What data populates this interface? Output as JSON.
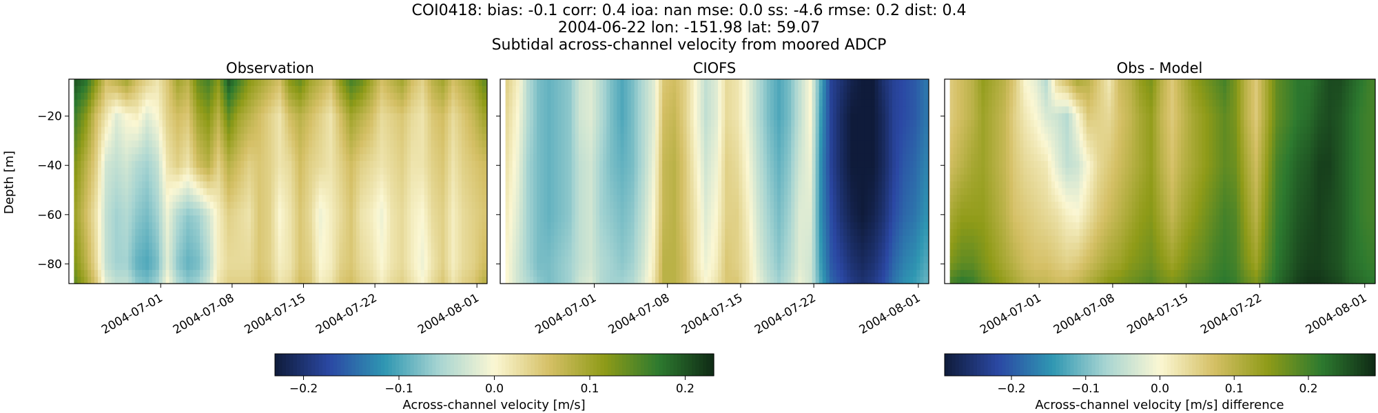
{
  "figure": {
    "title_lines": [
      "COI0418: bias: -0.1  corr: 0.4  ioa: nan  mse: 0.0  ss: -4.6  rmse: 0.2  dist: 0.4",
      "2004-06-22 lon: -151.98 lat: 59.07",
      "Subtidal across-channel velocity from moored ADCP"
    ]
  },
  "chart_data": [
    {
      "type": "heatmap",
      "title": "Observation",
      "ylabel": "Depth [m]",
      "xlabel": "",
      "x_range": [
        "2004-06-22",
        "2004-08-02"
      ],
      "ylim": [
        -88,
        -5
      ],
      "xticks": [
        "2004-07-01",
        "2004-07-08",
        "2004-07-15",
        "2004-07-22",
        "2004-08-01"
      ],
      "yticks": [
        -20,
        -40,
        -60,
        -80
      ],
      "colormap": "delta (blue-teal-cream-yellow-green)",
      "color_range": [
        -0.23,
        0.23
      ],
      "time_columns": [
        "2004-06-23",
        "2004-06-24",
        "2004-06-25",
        "2004-06-26",
        "2004-06-27",
        "2004-06-28",
        "2004-06-29",
        "2004-06-30",
        "2004-07-01",
        "2004-07-02",
        "2004-07-03",
        "2004-07-04",
        "2004-07-05",
        "2004-07-06",
        "2004-07-07",
        "2004-07-08",
        "2004-07-09",
        "2004-07-10",
        "2004-07-11",
        "2004-07-12",
        "2004-07-13",
        "2004-07-14",
        "2004-07-15",
        "2004-07-16",
        "2004-07-17",
        "2004-07-18",
        "2004-07-19",
        "2004-07-20",
        "2004-07-21",
        "2004-07-22",
        "2004-07-23",
        "2004-07-24",
        "2004-07-25",
        "2004-07-26",
        "2004-07-27",
        "2004-07-28",
        "2004-07-29",
        "2004-07-30",
        "2004-07-31",
        "2004-08-01",
        "2004-08-02"
      ],
      "depth_levels": [
        -5,
        -20,
        -40,
        -60,
        -80,
        -88
      ],
      "values": [
        [
          0.2,
          0.18,
          0.12,
          0.06,
          0.08,
          0.1,
          0.06,
          0.04,
          0.02,
          0.05,
          0.1,
          0.08,
          0.14,
          0.16,
          0.12,
          0.2,
          0.16,
          0.12,
          0.1,
          0.08,
          0.06,
          0.12,
          0.14,
          0.1,
          0.08,
          0.06,
          0.12,
          0.16,
          0.14,
          0.1,
          0.06,
          0.08,
          0.1,
          0.06,
          0.04,
          0.08,
          0.1,
          0.06,
          0.08,
          0.1,
          0.14
        ],
        [
          0.16,
          0.12,
          0.06,
          0.02,
          -0.02,
          0.0,
          0.01,
          -0.02,
          0.0,
          0.04,
          0.06,
          0.05,
          0.1,
          0.12,
          0.08,
          0.14,
          0.1,
          0.08,
          0.06,
          0.04,
          0.02,
          0.06,
          0.08,
          0.06,
          0.04,
          0.02,
          0.06,
          0.1,
          0.08,
          0.06,
          0.03,
          0.04,
          0.05,
          0.03,
          0.02,
          0.05,
          0.06,
          0.03,
          0.05,
          0.07,
          0.1
        ],
        [
          0.12,
          0.08,
          0.04,
          -0.03,
          -0.04,
          -0.03,
          -0.05,
          -0.06,
          -0.04,
          0.02,
          0.04,
          0.02,
          0.06,
          0.08,
          0.04,
          0.08,
          0.06,
          0.04,
          0.05,
          0.04,
          0.02,
          0.03,
          0.06,
          0.04,
          0.03,
          0.02,
          0.04,
          0.06,
          0.04,
          0.03,
          0.02,
          0.03,
          0.04,
          0.02,
          0.02,
          0.04,
          0.05,
          0.02,
          0.04,
          0.05,
          0.06
        ],
        [
          0.1,
          0.06,
          0.02,
          -0.04,
          -0.06,
          -0.05,
          -0.07,
          -0.08,
          -0.06,
          -0.01,
          -0.05,
          -0.07,
          -0.06,
          -0.03,
          0.01,
          0.04,
          0.03,
          0.02,
          0.05,
          0.04,
          0.0,
          0.02,
          0.05,
          0.03,
          -0.01,
          0.01,
          0.03,
          0.05,
          0.02,
          0.01,
          -0.01,
          0.02,
          0.03,
          0.01,
          0.0,
          0.03,
          0.04,
          0.01,
          0.03,
          0.04,
          0.05
        ],
        [
          0.12,
          0.08,
          0.03,
          -0.04,
          -0.06,
          -0.06,
          -0.09,
          -0.1,
          -0.08,
          -0.02,
          -0.07,
          -0.09,
          -0.08,
          -0.05,
          0.01,
          0.03,
          0.03,
          0.03,
          0.05,
          0.04,
          0.01,
          0.02,
          0.05,
          0.04,
          0.0,
          0.01,
          0.04,
          0.05,
          0.03,
          0.02,
          0.0,
          0.02,
          0.03,
          0.01,
          -0.01,
          0.02,
          0.04,
          0.01,
          0.03,
          0.04,
          0.06
        ],
        [
          0.14,
          0.1,
          0.05,
          -0.02,
          -0.04,
          -0.04,
          -0.07,
          -0.08,
          -0.06,
          0.0,
          -0.05,
          -0.07,
          -0.06,
          -0.03,
          0.02,
          0.04,
          0.04,
          0.04,
          0.06,
          0.05,
          0.02,
          0.03,
          0.06,
          0.05,
          0.01,
          0.02,
          0.05,
          0.06,
          0.04,
          0.03,
          0.01,
          0.03,
          0.04,
          0.02,
          0.0,
          0.03,
          0.05,
          0.02,
          0.04,
          0.05,
          0.08
        ]
      ]
    },
    {
      "type": "heatmap",
      "title": "CIOFS",
      "ylabel": "",
      "xlabel": "",
      "x_range": [
        "2004-06-22",
        "2004-08-02"
      ],
      "ylim": [
        -88,
        -5
      ],
      "xticks": [
        "2004-07-01",
        "2004-07-08",
        "2004-07-15",
        "2004-07-22",
        "2004-08-01"
      ],
      "yticks": [
        -20,
        -40,
        -60,
        -80
      ],
      "colormap": "delta (blue-teal-cream-yellow-green)",
      "color_range": [
        -0.23,
        0.23
      ],
      "time_columns": [
        "2004-06-23",
        "2004-06-24",
        "2004-06-25",
        "2004-06-26",
        "2004-06-27",
        "2004-06-28",
        "2004-06-29",
        "2004-06-30",
        "2004-07-01",
        "2004-07-02",
        "2004-07-03",
        "2004-07-04",
        "2004-07-05",
        "2004-07-06",
        "2004-07-07",
        "2004-07-08",
        "2004-07-09",
        "2004-07-10",
        "2004-07-11",
        "2004-07-12",
        "2004-07-13",
        "2004-07-14",
        "2004-07-15",
        "2004-07-16",
        "2004-07-17",
        "2004-07-18",
        "2004-07-19",
        "2004-07-20",
        "2004-07-21",
        "2004-07-22",
        "2004-07-23",
        "2004-07-24",
        "2004-07-25",
        "2004-07-26",
        "2004-07-27",
        "2004-07-28",
        "2004-07-29",
        "2004-07-30",
        "2004-07-31",
        "2004-08-01",
        "2004-08-02"
      ],
      "depth_levels": [
        -5,
        -20,
        -40,
        -60,
        -80,
        -88
      ],
      "values": [
        [
          0.04,
          0.01,
          -0.05,
          -0.08,
          -0.09,
          -0.08,
          -0.07,
          -0.03,
          -0.02,
          -0.05,
          -0.08,
          -0.1,
          -0.08,
          -0.05,
          -0.02,
          0.05,
          0.06,
          0.04,
          0.0,
          -0.04,
          -0.02,
          0.03,
          0.02,
          -0.01,
          -0.05,
          -0.08,
          -0.1,
          -0.08,
          -0.04,
          0.0,
          -0.1,
          -0.18,
          -0.2,
          -0.22,
          -0.23,
          -0.23,
          -0.2,
          -0.18,
          -0.17,
          -0.16,
          -0.14
        ],
        [
          0.03,
          0.0,
          -0.05,
          -0.08,
          -0.09,
          -0.08,
          -0.07,
          -0.03,
          -0.02,
          -0.05,
          -0.08,
          -0.1,
          -0.08,
          -0.05,
          -0.02,
          0.06,
          0.07,
          0.04,
          0.0,
          -0.04,
          -0.02,
          0.03,
          0.02,
          -0.01,
          -0.05,
          -0.08,
          -0.1,
          -0.08,
          -0.04,
          0.0,
          -0.11,
          -0.18,
          -0.21,
          -0.23,
          -0.23,
          -0.23,
          -0.21,
          -0.18,
          -0.17,
          -0.16,
          -0.14
        ],
        [
          0.02,
          -0.01,
          -0.06,
          -0.08,
          -0.09,
          -0.08,
          -0.07,
          -0.04,
          -0.03,
          -0.06,
          -0.08,
          -0.09,
          -0.08,
          -0.05,
          -0.01,
          0.07,
          0.08,
          0.05,
          0.01,
          -0.03,
          -0.01,
          0.04,
          0.03,
          0.0,
          -0.04,
          -0.07,
          -0.09,
          -0.07,
          -0.03,
          -0.01,
          -0.12,
          -0.18,
          -0.21,
          -0.23,
          -0.23,
          -0.23,
          -0.21,
          -0.18,
          -0.16,
          -0.15,
          -0.13
        ],
        [
          0.01,
          -0.02,
          -0.06,
          -0.08,
          -0.09,
          -0.08,
          -0.07,
          -0.04,
          -0.03,
          -0.06,
          -0.07,
          -0.08,
          -0.07,
          -0.04,
          0.0,
          0.07,
          0.08,
          0.05,
          0.02,
          -0.02,
          0.0,
          0.04,
          0.04,
          0.01,
          -0.03,
          -0.06,
          -0.08,
          -0.06,
          -0.02,
          -0.02,
          -0.12,
          -0.17,
          -0.2,
          -0.22,
          -0.23,
          -0.22,
          -0.2,
          -0.17,
          -0.15,
          -0.14,
          -0.12
        ],
        [
          0.0,
          -0.03,
          -0.06,
          -0.08,
          -0.08,
          -0.07,
          -0.06,
          -0.04,
          -0.03,
          -0.05,
          -0.06,
          -0.07,
          -0.06,
          -0.03,
          0.01,
          0.08,
          0.08,
          0.06,
          0.02,
          -0.01,
          0.01,
          0.05,
          0.04,
          0.02,
          -0.02,
          -0.05,
          -0.07,
          -0.05,
          -0.02,
          -0.03,
          -0.11,
          -0.16,
          -0.18,
          -0.2,
          -0.21,
          -0.2,
          -0.18,
          -0.15,
          -0.13,
          -0.12,
          -0.1
        ],
        [
          0.0,
          -0.03,
          -0.05,
          -0.07,
          -0.08,
          -0.07,
          -0.06,
          -0.03,
          -0.02,
          -0.05,
          -0.06,
          -0.06,
          -0.05,
          -0.02,
          0.02,
          0.08,
          0.08,
          0.06,
          0.03,
          0.0,
          0.02,
          0.05,
          0.05,
          0.02,
          -0.01,
          -0.04,
          -0.06,
          -0.04,
          -0.01,
          -0.03,
          -0.1,
          -0.15,
          -0.17,
          -0.19,
          -0.2,
          -0.19,
          -0.17,
          -0.14,
          -0.12,
          -0.11,
          -0.09
        ]
      ]
    },
    {
      "type": "heatmap",
      "title": "Obs - Model",
      "ylabel": "",
      "xlabel": "",
      "x_range": [
        "2004-06-22",
        "2004-08-02"
      ],
      "ylim": [
        -88,
        -5
      ],
      "xticks": [
        "2004-07-01",
        "2004-07-08",
        "2004-07-15",
        "2004-07-22",
        "2004-08-01"
      ],
      "yticks": [
        -20,
        -40,
        -60,
        -80
      ],
      "colormap": "delta (blue-teal-cream-yellow-green)",
      "color_range": [
        -0.29,
        0.29
      ],
      "time_columns": [
        "2004-06-23",
        "2004-06-24",
        "2004-06-25",
        "2004-06-26",
        "2004-06-27",
        "2004-06-28",
        "2004-06-29",
        "2004-06-30",
        "2004-07-01",
        "2004-07-02",
        "2004-07-03",
        "2004-07-04",
        "2004-07-05",
        "2004-07-06",
        "2004-07-07",
        "2004-07-08",
        "2004-07-09",
        "2004-07-10",
        "2004-07-11",
        "2004-07-12",
        "2004-07-13",
        "2004-07-14",
        "2004-07-15",
        "2004-07-16",
        "2004-07-17",
        "2004-07-18",
        "2004-07-19",
        "2004-07-20",
        "2004-07-21",
        "2004-07-22",
        "2004-07-23",
        "2004-07-24",
        "2004-07-25",
        "2004-07-26",
        "2004-07-27",
        "2004-07-28",
        "2004-07-29",
        "2004-07-30",
        "2004-07-31",
        "2004-08-01",
        "2004-08-02"
      ],
      "depth_levels": [
        -5,
        -20,
        -40,
        -60,
        -80,
        -88
      ],
      "values": [
        [
          0.06,
          0.08,
          0.1,
          0.14,
          0.12,
          0.1,
          0.06,
          0.0,
          -0.02,
          -0.06,
          0.04,
          0.08,
          0.12,
          0.1,
          0.06,
          0.02,
          0.08,
          0.1,
          0.14,
          0.16,
          0.1,
          0.06,
          0.1,
          0.14,
          0.16,
          0.18,
          0.2,
          0.16,
          0.1,
          0.06,
          0.12,
          0.18,
          0.2,
          0.22,
          0.22,
          0.24,
          0.26,
          0.26,
          0.24,
          0.22,
          0.2
        ],
        [
          0.06,
          0.08,
          0.1,
          0.13,
          0.11,
          0.09,
          0.05,
          0.02,
          0.0,
          -0.03,
          -0.04,
          -0.06,
          0.0,
          0.06,
          0.05,
          0.04,
          0.07,
          0.09,
          0.12,
          0.14,
          0.09,
          0.06,
          0.09,
          0.12,
          0.14,
          0.16,
          0.18,
          0.16,
          0.1,
          0.06,
          0.12,
          0.18,
          0.2,
          0.22,
          0.23,
          0.25,
          0.26,
          0.25,
          0.23,
          0.21,
          0.2
        ],
        [
          0.08,
          0.1,
          0.12,
          0.13,
          0.11,
          0.09,
          0.06,
          0.04,
          0.03,
          0.02,
          -0.02,
          -0.05,
          -0.04,
          0.0,
          0.04,
          0.06,
          0.08,
          0.1,
          0.12,
          0.14,
          0.1,
          0.07,
          0.1,
          0.12,
          0.14,
          0.16,
          0.18,
          0.17,
          0.12,
          0.08,
          0.14,
          0.2,
          0.22,
          0.24,
          0.25,
          0.27,
          0.27,
          0.25,
          0.23,
          0.21,
          0.2
        ],
        [
          0.12,
          0.14,
          0.14,
          0.14,
          0.12,
          0.1,
          0.07,
          0.06,
          0.05,
          0.04,
          0.03,
          0.01,
          0.0,
          0.03,
          0.06,
          0.08,
          0.1,
          0.12,
          0.14,
          0.15,
          0.12,
          0.09,
          0.12,
          0.14,
          0.16,
          0.18,
          0.2,
          0.19,
          0.14,
          0.1,
          0.16,
          0.21,
          0.23,
          0.25,
          0.26,
          0.27,
          0.26,
          0.25,
          0.23,
          0.21,
          0.2
        ],
        [
          0.16,
          0.18,
          0.18,
          0.16,
          0.14,
          0.12,
          0.1,
          0.08,
          0.07,
          0.07,
          0.06,
          0.05,
          0.06,
          0.08,
          0.1,
          0.12,
          0.13,
          0.15,
          0.16,
          0.17,
          0.15,
          0.13,
          0.15,
          0.17,
          0.18,
          0.2,
          0.21,
          0.2,
          0.16,
          0.13,
          0.18,
          0.22,
          0.24,
          0.26,
          0.27,
          0.27,
          0.26,
          0.25,
          0.23,
          0.22,
          0.21
        ],
        [
          0.2,
          0.22,
          0.21,
          0.18,
          0.16,
          0.14,
          0.12,
          0.1,
          0.09,
          0.09,
          0.08,
          0.08,
          0.09,
          0.11,
          0.13,
          0.15,
          0.16,
          0.17,
          0.18,
          0.19,
          0.17,
          0.16,
          0.17,
          0.19,
          0.2,
          0.21,
          0.22,
          0.21,
          0.18,
          0.16,
          0.2,
          0.23,
          0.25,
          0.27,
          0.28,
          0.28,
          0.27,
          0.26,
          0.24,
          0.23,
          0.22
        ]
      ]
    }
  ],
  "colorbars": [
    {
      "label": "Across-channel velocity [m/s]",
      "ticks": [
        "−0.2",
        "−0.1",
        "0.0",
        "0.1",
        "0.2"
      ],
      "tick_values": [
        -0.2,
        -0.1,
        0.0,
        0.1,
        0.2
      ],
      "range": [
        -0.23,
        0.23
      ]
    },
    {
      "label": "Across-channel velocity [m/s] difference",
      "ticks": [
        "−0.2",
        "−0.1",
        "0.0",
        "0.1",
        "0.2"
      ],
      "tick_values": [
        -0.2,
        -0.1,
        0.0,
        0.1,
        0.2
      ],
      "range": [
        -0.29,
        0.29
      ]
    }
  ],
  "colors": {
    "colormap_stops": [
      "#0f1b3a",
      "#2b48a4",
      "#2f97b2",
      "#a8d5d2",
      "#fbf7d3",
      "#d5c066",
      "#8f9b18",
      "#2d7a2f",
      "#0f2a15"
    ]
  }
}
